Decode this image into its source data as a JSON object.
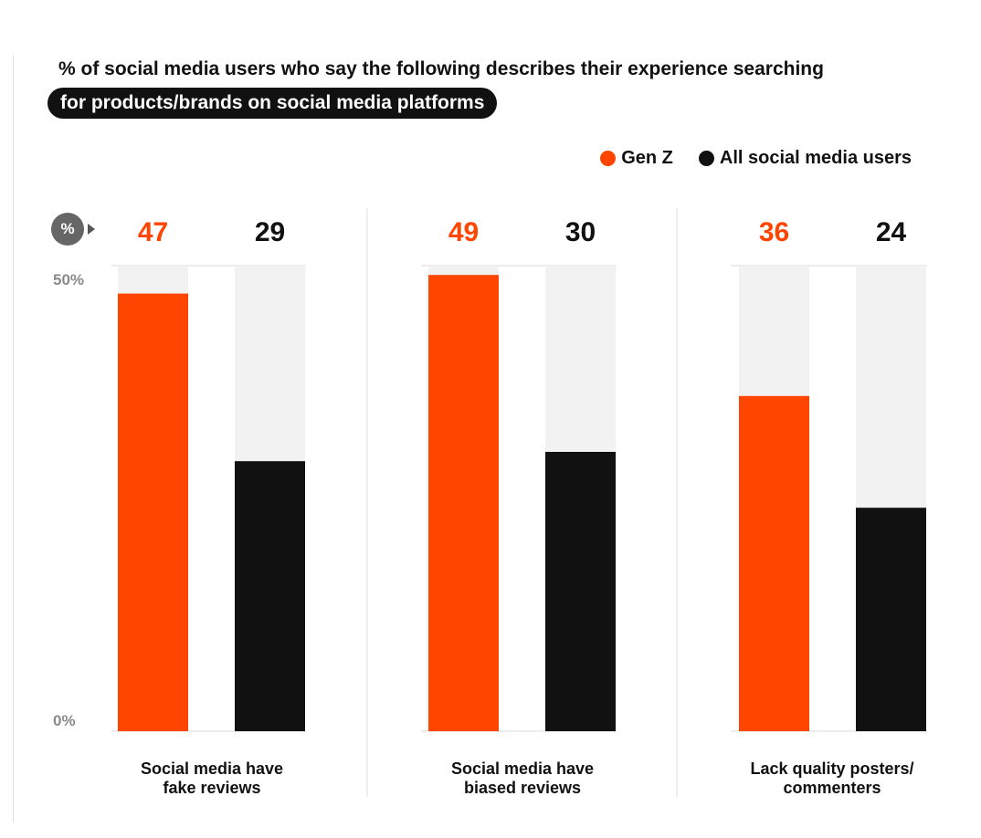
{
  "title": {
    "line1": "% of social media users who say the following describes their experience searching",
    "line2": "for products/brands on social media platforms"
  },
  "legend": {
    "genz": "Gen Z",
    "all": "All social media users"
  },
  "unit_badge": "%",
  "y_ticks": {
    "max": "50%",
    "min": "0%"
  },
  "colors": {
    "genz": "#ff4500",
    "all": "#111111",
    "track": "#f2f2f2"
  },
  "chart_data": {
    "type": "bar",
    "categories": [
      "Social media have fake reviews",
      "Social media have biased reviews",
      "Lack quality posters/ commenters"
    ],
    "series": [
      {
        "name": "Gen Z",
        "values": [
          47,
          49,
          36
        ]
      },
      {
        "name": "All social media users",
        "values": [
          29,
          30,
          24
        ]
      }
    ],
    "ylim": [
      0,
      50
    ],
    "tick_labels": [
      "50%",
      "0%"
    ],
    "legend_position": "top-right",
    "grid": false
  },
  "category_labels": [
    {
      "line1": "Social media have",
      "line2": "fake reviews"
    },
    {
      "line1": "Social media have",
      "line2": "biased reviews"
    },
    {
      "line1": "Lack quality posters/",
      "line2": "commenters"
    }
  ]
}
